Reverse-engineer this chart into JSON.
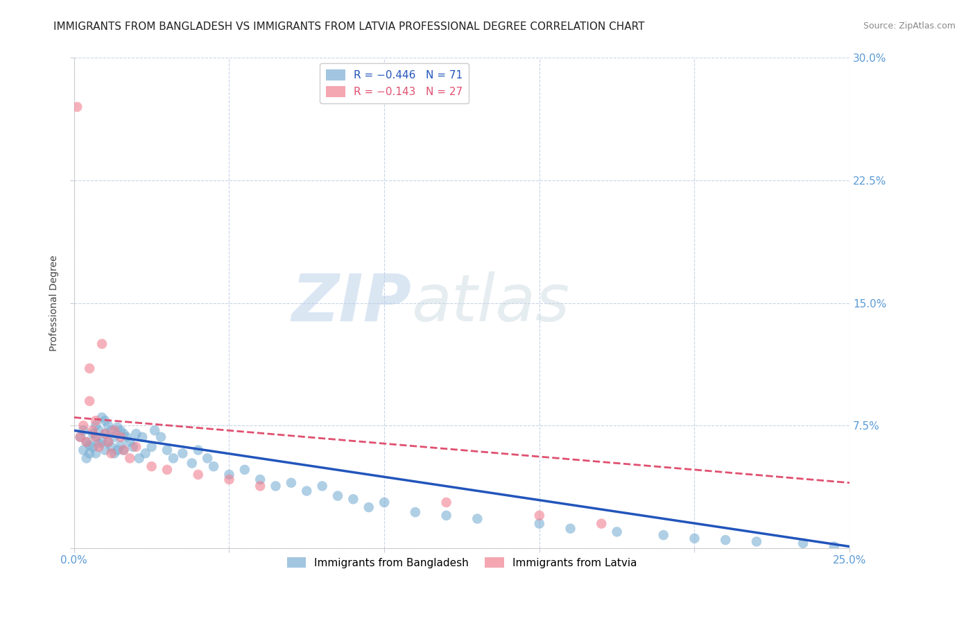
{
  "title": "IMMIGRANTS FROM BANGLADESH VS IMMIGRANTS FROM LATVIA PROFESSIONAL DEGREE CORRELATION CHART",
  "source": "Source: ZipAtlas.com",
  "ylabel": "Professional Degree",
  "xlim": [
    0.0,
    0.25
  ],
  "ylim": [
    0.0,
    0.3
  ],
  "xticks": [
    0.0,
    0.05,
    0.1,
    0.15,
    0.2,
    0.25
  ],
  "yticks": [
    0.0,
    0.075,
    0.15,
    0.225,
    0.3
  ],
  "ytick_labels": [
    "",
    "7.5%",
    "15.0%",
    "22.5%",
    "30.0%"
  ],
  "xtick_labels": [
    "0.0%",
    "",
    "",
    "",
    "",
    "25.0%"
  ],
  "legend_label_bangladesh": "Immigrants from Bangladesh",
  "legend_label_latvia": "Immigrants from Latvia",
  "color_bangladesh": "#7bafd4",
  "color_latvia": "#f08090",
  "color_trendline_bangladesh": "#2255bb",
  "color_trendline_latvia": "#e05070",
  "watermark_zip": "ZIP",
  "watermark_atlas": "atlas",
  "background_color": "#ffffff",
  "grid_color": "#c8d4e8",
  "title_fontsize": 11,
  "axis_label_fontsize": 10,
  "tick_fontsize": 11,
  "right_ytick_color": "#5b9bd5",
  "bottom_xtick_color": "#5b9bd5",
  "bangladesh_x": [
    0.002,
    0.003,
    0.003,
    0.004,
    0.004,
    0.005,
    0.005,
    0.006,
    0.006,
    0.007,
    0.007,
    0.007,
    0.008,
    0.008,
    0.009,
    0.009,
    0.01,
    0.01,
    0.01,
    0.011,
    0.011,
    0.012,
    0.012,
    0.013,
    0.013,
    0.014,
    0.014,
    0.015,
    0.015,
    0.016,
    0.016,
    0.017,
    0.018,
    0.019,
    0.02,
    0.021,
    0.022,
    0.023,
    0.025,
    0.026,
    0.028,
    0.03,
    0.032,
    0.035,
    0.038,
    0.04,
    0.043,
    0.045,
    0.05,
    0.055,
    0.06,
    0.065,
    0.07,
    0.075,
    0.08,
    0.085,
    0.09,
    0.095,
    0.1,
    0.11,
    0.12,
    0.13,
    0.15,
    0.16,
    0.175,
    0.19,
    0.2,
    0.21,
    0.22,
    0.235,
    0.245
  ],
  "bangladesh_y": [
    0.068,
    0.072,
    0.06,
    0.065,
    0.055,
    0.063,
    0.058,
    0.07,
    0.062,
    0.075,
    0.068,
    0.058,
    0.072,
    0.064,
    0.08,
    0.065,
    0.078,
    0.07,
    0.06,
    0.075,
    0.065,
    0.072,
    0.062,
    0.068,
    0.058,
    0.074,
    0.06,
    0.072,
    0.063,
    0.07,
    0.06,
    0.068,
    0.065,
    0.062,
    0.07,
    0.055,
    0.068,
    0.058,
    0.062,
    0.072,
    0.068,
    0.06,
    0.055,
    0.058,
    0.052,
    0.06,
    0.055,
    0.05,
    0.045,
    0.048,
    0.042,
    0.038,
    0.04,
    0.035,
    0.038,
    0.032,
    0.03,
    0.025,
    0.028,
    0.022,
    0.02,
    0.018,
    0.015,
    0.012,
    0.01,
    0.008,
    0.006,
    0.005,
    0.004,
    0.003,
    0.001
  ],
  "latvia_x": [
    0.001,
    0.002,
    0.003,
    0.004,
    0.005,
    0.005,
    0.006,
    0.007,
    0.007,
    0.008,
    0.009,
    0.01,
    0.011,
    0.012,
    0.013,
    0.015,
    0.016,
    0.018,
    0.02,
    0.025,
    0.03,
    0.04,
    0.05,
    0.06,
    0.12,
    0.15,
    0.17
  ],
  "latvia_y": [
    0.27,
    0.068,
    0.075,
    0.065,
    0.09,
    0.11,
    0.072,
    0.068,
    0.078,
    0.062,
    0.125,
    0.07,
    0.065,
    0.058,
    0.072,
    0.068,
    0.06,
    0.055,
    0.062,
    0.05,
    0.048,
    0.045,
    0.042,
    0.038,
    0.028,
    0.02,
    0.015
  ],
  "bangladesh_trend_x": [
    0.0,
    0.25
  ],
  "bangladesh_trend_y": [
    0.072,
    0.001
  ],
  "latvia_trend_x": [
    0.0,
    0.25
  ],
  "latvia_trend_y": [
    0.08,
    0.04
  ]
}
